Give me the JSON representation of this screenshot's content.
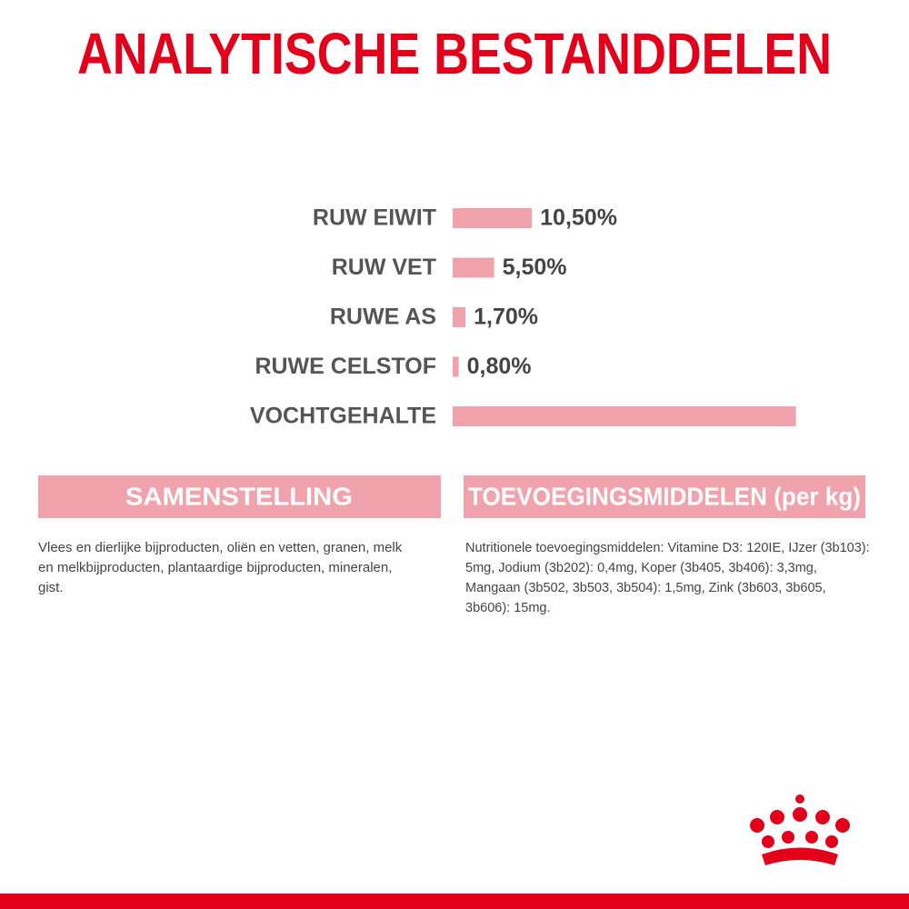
{
  "chart_data": {
    "type": "bar",
    "orientation": "horizontal",
    "title": "ANALYTISCHE BESTANDDELEN",
    "categories": [
      "RUW EIWIT",
      "RUW VET",
      "RUWE AS",
      "RUWE CELSTOF",
      "VOCHTGEHALTE"
    ],
    "values": [
      10.5,
      5.5,
      1.7,
      0.8,
      45.5
    ],
    "value_labels": [
      "10,50%",
      "5,50%",
      "1,70%",
      "0,80%",
      null
    ],
    "color": "#f0a3ad"
  },
  "sections": [
    {
      "title": "SAMENSTELLING",
      "body": "Vlees en dierlijke bijproducten, oliën en vetten, granen, melk en melkbijproducten, plantaardige bijproducten, mineralen, gist."
    },
    {
      "title": "TOEVOEGINGSMIDDELEN (per kg)",
      "body": "Nutritionele toevoegingsmiddelen: Vitamine D3: 120IE, IJzer (3b103): 5mg, Jodium (3b202): 0,4mg, Koper (3b405, 3b406): 3,3mg, Mangaan (3b502, 3b503, 3b504): 1,5mg, Zink (3b603, 3b605, 3b606): 15mg."
    }
  ]
}
